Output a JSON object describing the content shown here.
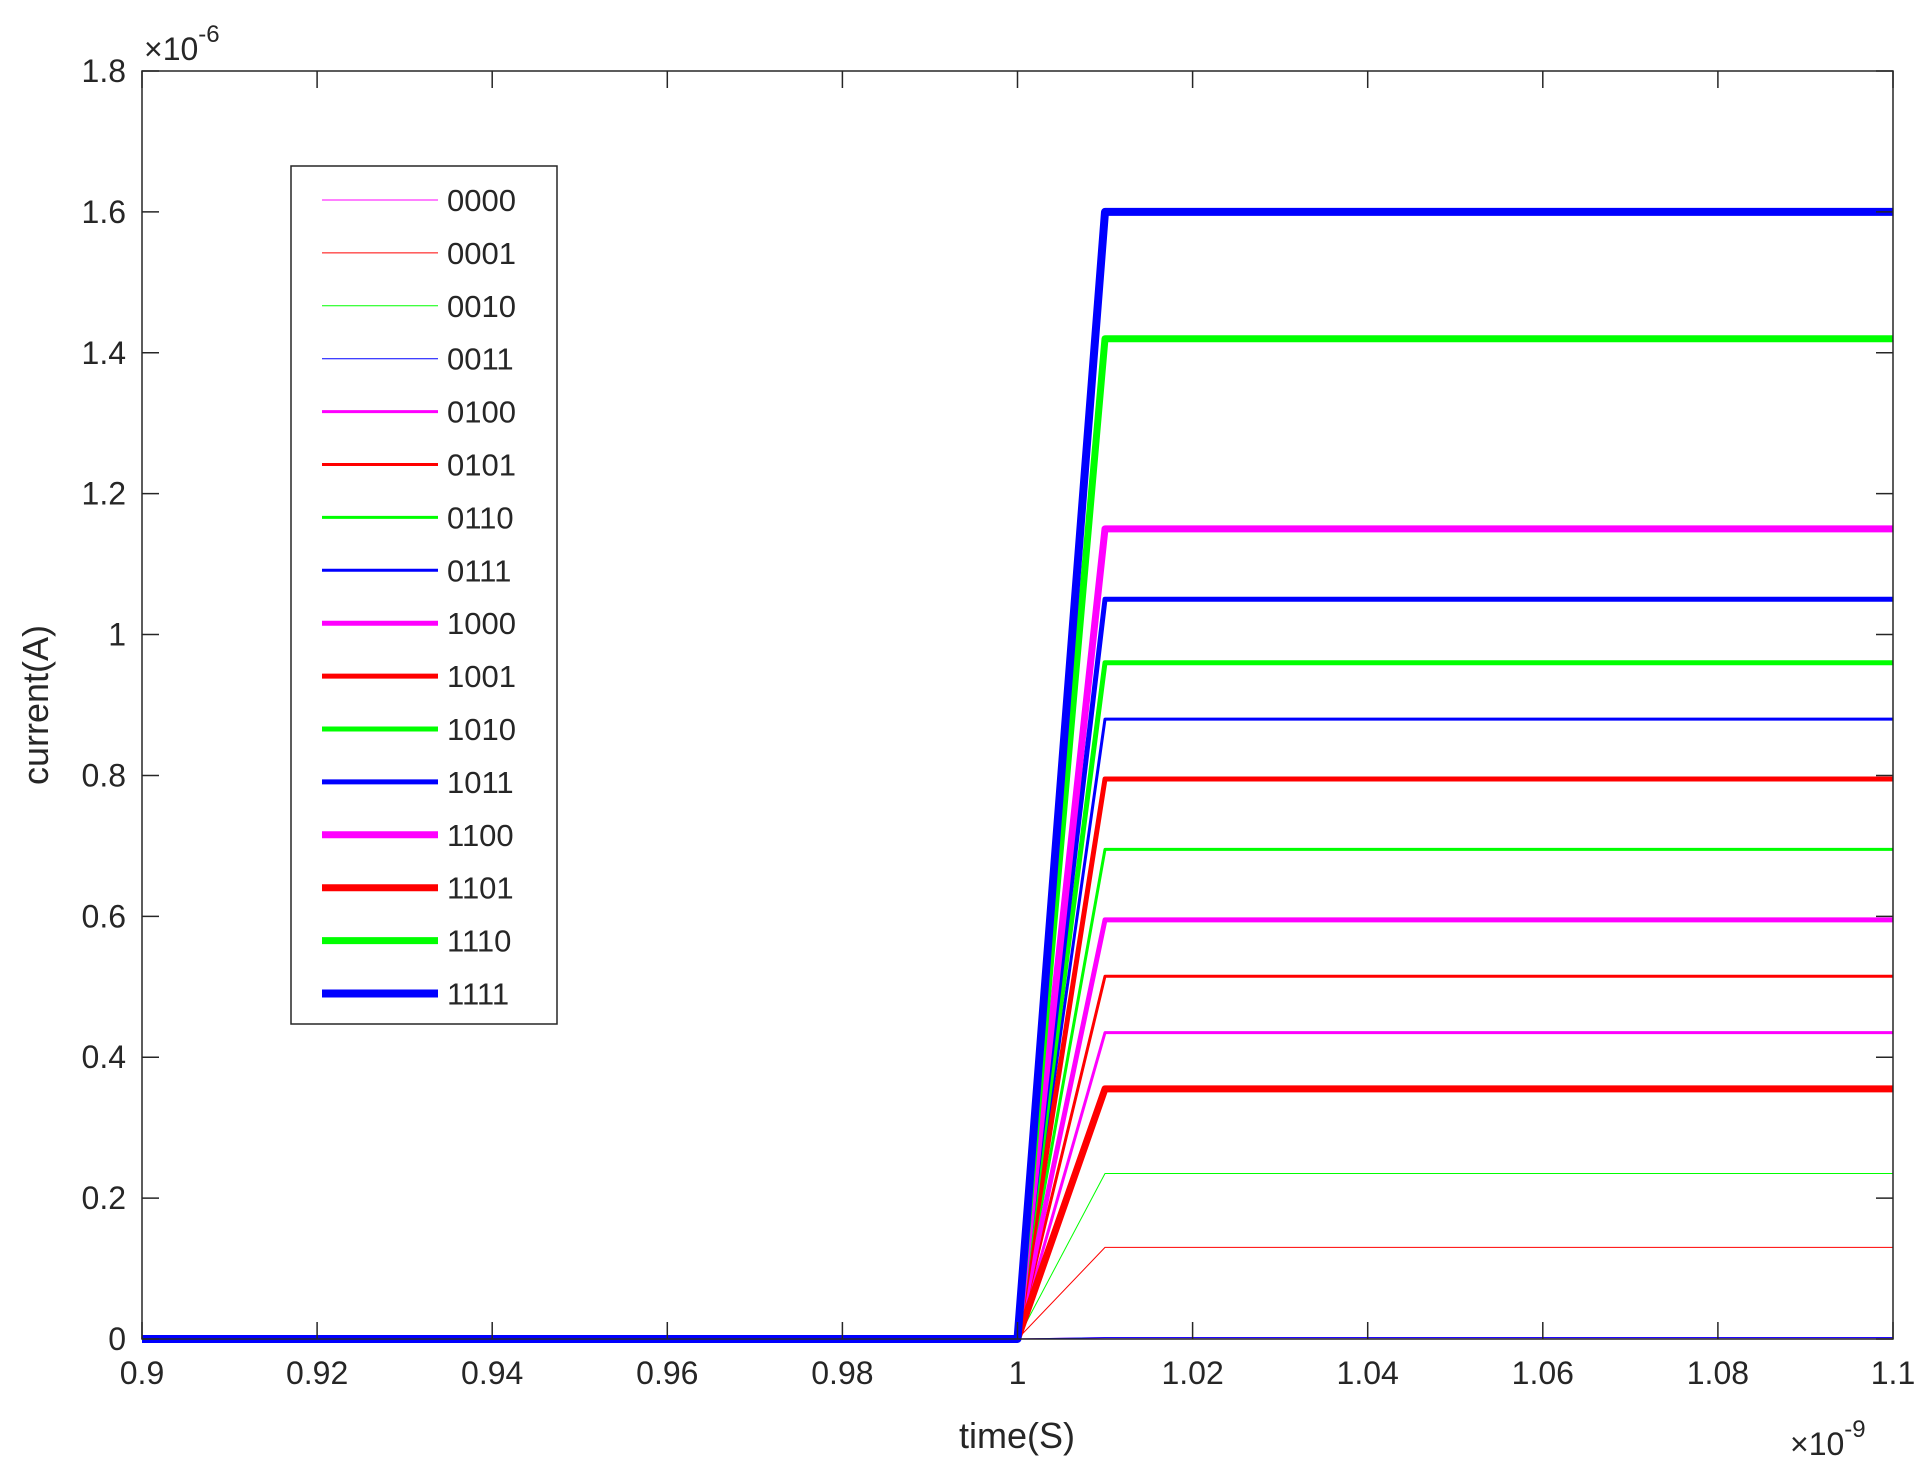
{
  "chart_data": {
    "type": "line",
    "title": "",
    "xlabel": "time(S)",
    "ylabel": "current(A)",
    "x_exponent": "×10",
    "x_exponent_power": "-9",
    "y_exponent": "×10",
    "y_exponent_power": "-6",
    "xlim": [
      0.9,
      1.1
    ],
    "ylim": [
      0,
      1.8
    ],
    "xticks": [
      0.9,
      0.92,
      0.94,
      0.96,
      0.98,
      1,
      1.02,
      1.04,
      1.06,
      1.08,
      1.1
    ],
    "xtick_labels": [
      "0.9",
      "0.92",
      "0.94",
      "0.96",
      "0.98",
      "1",
      "1.02",
      "1.04",
      "1.06",
      "1.08",
      "1.1"
    ],
    "yticks": [
      0,
      0.2,
      0.4,
      0.6,
      0.8,
      1,
      1.2,
      1.4,
      1.6,
      1.8
    ],
    "ytick_labels": [
      "0",
      "0.2",
      "0.4",
      "0.6",
      "0.8",
      "1",
      "1.2",
      "1.4",
      "1.6",
      "1.8"
    ],
    "grid": false,
    "legend_position": "top-left",
    "x": [
      0.9,
      1.0,
      1.01,
      1.1
    ],
    "series": [
      {
        "name": "0000",
        "color": "#ff00ff",
        "width": 1,
        "values": [
          0,
          0,
          0.002,
          0.002
        ]
      },
      {
        "name": "0001",
        "color": "#ff0000",
        "width": 1,
        "values": [
          0,
          0,
          0.13,
          0.13
        ]
      },
      {
        "name": "0010",
        "color": "#00ff00",
        "width": 1,
        "values": [
          0,
          0,
          0.235,
          0.235
        ]
      },
      {
        "name": "0011",
        "color": "#0000ff",
        "width": 1,
        "values": [
          0,
          0,
          0.002,
          0.002
        ]
      },
      {
        "name": "0100",
        "color": "#ff00ff",
        "width": 3,
        "values": [
          0,
          0,
          0.435,
          0.435
        ]
      },
      {
        "name": "0101",
        "color": "#ff0000",
        "width": 3,
        "values": [
          0,
          0,
          0.515,
          0.515
        ]
      },
      {
        "name": "0110",
        "color": "#00ff00",
        "width": 3,
        "values": [
          0,
          0,
          0.695,
          0.695
        ]
      },
      {
        "name": "0111",
        "color": "#0000ff",
        "width": 3,
        "values": [
          0,
          0,
          0.88,
          0.88
        ]
      },
      {
        "name": "1000",
        "color": "#ff00ff",
        "width": 5,
        "values": [
          0,
          0,
          0.595,
          0.595
        ]
      },
      {
        "name": "1001",
        "color": "#ff0000",
        "width": 5,
        "values": [
          0,
          0,
          0.795,
          0.795
        ]
      },
      {
        "name": "1010",
        "color": "#00ff00",
        "width": 5,
        "values": [
          0,
          0,
          0.96,
          0.96
        ]
      },
      {
        "name": "1011",
        "color": "#0000ff",
        "width": 5,
        "values": [
          0,
          0,
          1.05,
          1.05
        ]
      },
      {
        "name": "1100",
        "color": "#ff00ff",
        "width": 7,
        "values": [
          0,
          0,
          1.15,
          1.15
        ]
      },
      {
        "name": "1101",
        "color": "#ff0000",
        "width": 7,
        "values": [
          0,
          0,
          0.355,
          0.355
        ]
      },
      {
        "name": "1110",
        "color": "#00ff00",
        "width": 7,
        "values": [
          0,
          0,
          1.42,
          1.42
        ]
      },
      {
        "name": "1111",
        "color": "#0000ff",
        "width": 8,
        "values": [
          0,
          0,
          1.6,
          1.6
        ]
      }
    ]
  }
}
